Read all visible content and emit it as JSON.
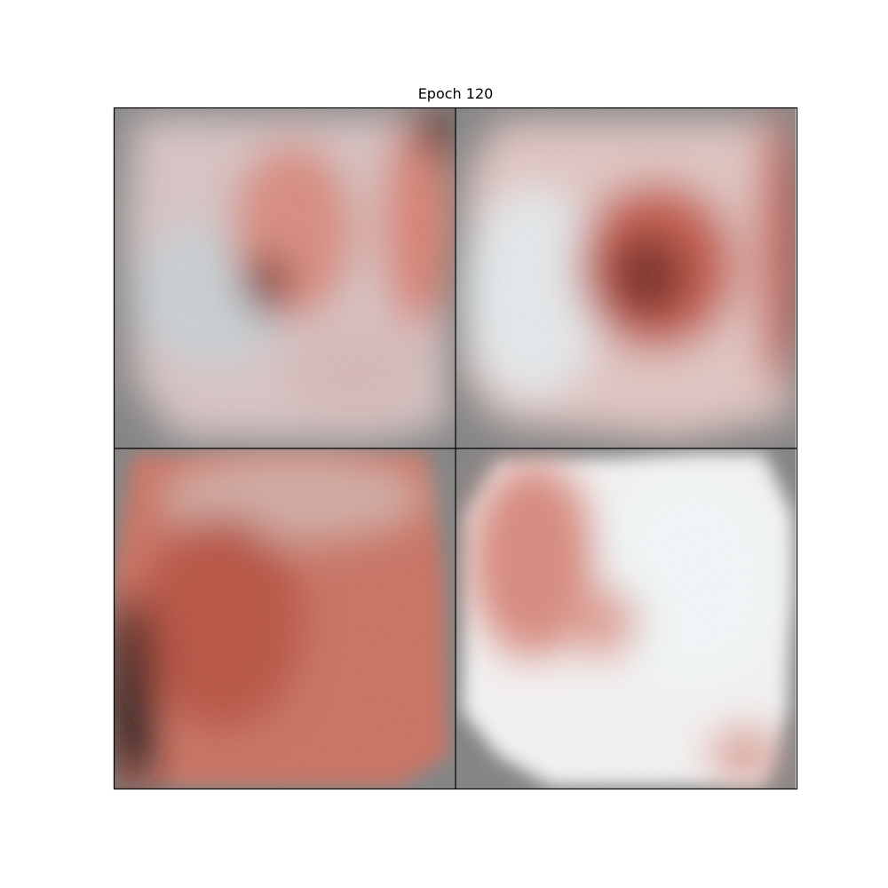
{
  "title": "Epoch 120"
}
